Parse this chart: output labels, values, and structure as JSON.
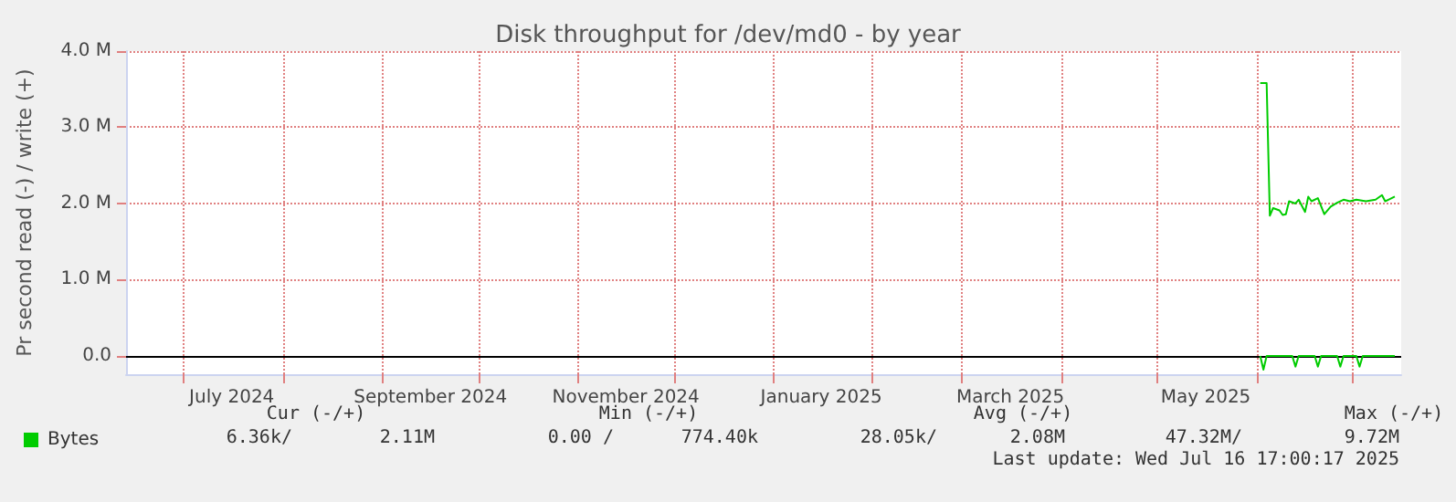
{
  "chart_data": {
    "type": "line",
    "title": "Disk throughput for /dev/md0 - by year",
    "ylabel": "Pr second read (-) / write (+)",
    "xlim": [
      "2024-06-13",
      "2025-07-16"
    ],
    "ylim": [
      -240000,
      4000000
    ],
    "yticks": [
      {
        "value": 0,
        "label": "0.0"
      },
      {
        "value": 1000000,
        "label": "1.0 M"
      },
      {
        "value": 2000000,
        "label": "2.0 M"
      },
      {
        "value": 3000000,
        "label": "3.0 M"
      },
      {
        "value": 4000000,
        "label": "4.0 M"
      }
    ],
    "xticks": [
      {
        "value": "2024-07-01",
        "label": null
      },
      {
        "value": "2024-07-16",
        "label": "July 2024"
      },
      {
        "value": "2024-08-01",
        "label": null
      },
      {
        "value": "2024-09-01",
        "label": null
      },
      {
        "value": "2024-09-16",
        "label": "September 2024"
      },
      {
        "value": "2024-10-01",
        "label": null
      },
      {
        "value": "2024-11-01",
        "label": null
      },
      {
        "value": "2024-11-16",
        "label": "November 2024"
      },
      {
        "value": "2024-12-01",
        "label": null
      },
      {
        "value": "2025-01-01",
        "label": null
      },
      {
        "value": "2025-01-16",
        "label": "January 2025"
      },
      {
        "value": "2025-02-01",
        "label": null
      },
      {
        "value": "2025-03-01",
        "label": null
      },
      {
        "value": "2025-03-16",
        "label": "March 2025"
      },
      {
        "value": "2025-04-01",
        "label": null
      },
      {
        "value": "2025-05-01",
        "label": null
      },
      {
        "value": "2025-05-16",
        "label": "May 2025"
      },
      {
        "value": "2025-06-01",
        "label": null
      },
      {
        "value": "2025-07-01",
        "label": null
      }
    ],
    "grid": true,
    "legend": "bottom",
    "marker": "none",
    "ref_lines": [
      {
        "axis": "y",
        "value": 0,
        "color": "#000000"
      }
    ],
    "series": [
      {
        "name": "Bytes",
        "color": "#00cc00",
        "x": [
          "2025-06-02",
          "2025-06-04",
          "2025-06-05",
          "2025-06-06",
          "2025-06-08",
          "2025-06-09",
          "2025-06-10",
          "2025-06-11",
          "2025-06-13",
          "2025-06-14",
          "2025-06-16",
          "2025-06-17",
          "2025-06-18",
          "2025-06-20",
          "2025-06-22",
          "2025-06-24",
          "2025-06-26",
          "2025-06-28",
          "2025-06-30",
          "2025-07-02",
          "2025-07-05",
          "2025-07-08",
          "2025-07-10",
          "2025-07-11",
          "2025-07-12",
          "2025-07-14"
        ],
        "values": [
          3580000,
          3580000,
          1840000,
          1940000,
          1910000,
          1850000,
          1860000,
          2030000,
          2000000,
          2050000,
          1890000,
          2090000,
          2030000,
          2070000,
          1860000,
          1960000,
          2010000,
          2050000,
          2030000,
          2050000,
          2030000,
          2050000,
          2110000,
          2030000,
          2050000,
          2090000
        ]
      },
      {
        "color": "#00cc00",
        "x": [
          "2025-06-02",
          "2025-06-03",
          "2025-06-04",
          "2025-06-12",
          "2025-06-13",
          "2025-06-14",
          "2025-06-19",
          "2025-06-20",
          "2025-06-21",
          "2025-06-26",
          "2025-06-27",
          "2025-06-28",
          "2025-07-02",
          "2025-07-03",
          "2025-07-04",
          "2025-07-14"
        ],
        "values": [
          0,
          -180000,
          0,
          0,
          -140000,
          0,
          0,
          -140000,
          0,
          0,
          -140000,
          0,
          0,
          -140000,
          0,
          0
        ]
      }
    ],
    "annotations": [
      "Cur (-/+)",
      "Min (-/+)",
      "Avg (-/+)",
      "Max (-/+)",
      "6.36k/",
      "2.11M",
      "0.00 /",
      "774.40k",
      "28.05k/",
      "2.08M",
      "47.32M/",
      "9.72M",
      "Last update: Wed Jul 16 17:00:17 2025"
    ]
  }
}
